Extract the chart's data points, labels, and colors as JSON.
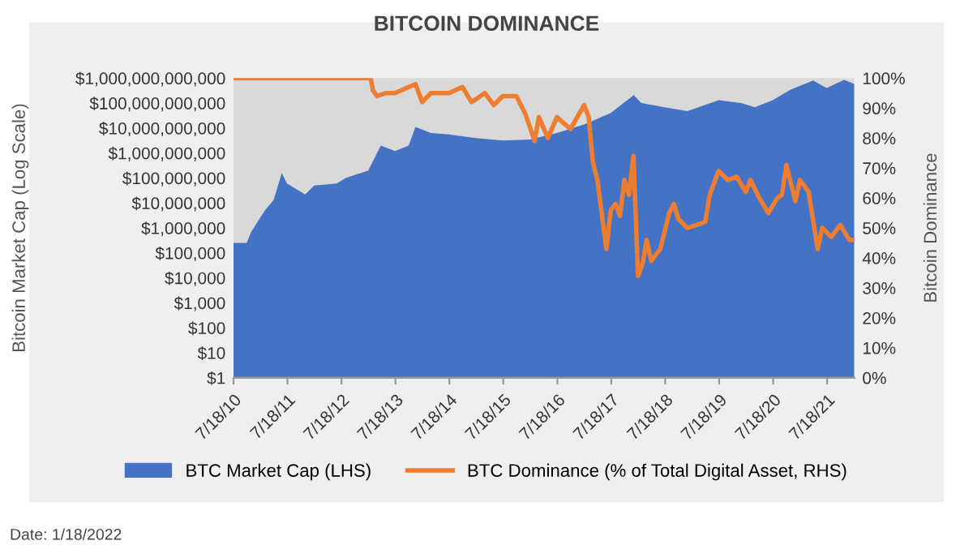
{
  "chart_data": {
    "type": "area",
    "title": "BITCOIN DOMINANCE",
    "ylabel": "Bitcoin Market Cap (Log Scale)",
    "y2label": "Bitcoin Dominance",
    "annotations": [
      "Date: 1/18/2022"
    ],
    "log": "y",
    "grid": false,
    "legend": "bottom",
    "xlim": [
      "2010-07-18",
      "2022-01-18"
    ],
    "xticks": [
      {
        "value": "2010-07-18",
        "label": "7/18/10"
      },
      {
        "value": "2011-07-18",
        "label": "7/18/11"
      },
      {
        "value": "2012-07-18",
        "label": "7/18/12"
      },
      {
        "value": "2013-07-18",
        "label": "7/18/13"
      },
      {
        "value": "2014-07-18",
        "label": "7/18/14"
      },
      {
        "value": "2015-07-18",
        "label": "7/18/15"
      },
      {
        "value": "2016-07-18",
        "label": "7/18/16"
      },
      {
        "value": "2017-07-18",
        "label": "7/18/17"
      },
      {
        "value": "2018-07-18",
        "label": "7/18/18"
      },
      {
        "value": "2019-07-18",
        "label": "7/18/19"
      },
      {
        "value": "2020-07-18",
        "label": "7/18/20"
      },
      {
        "value": "2021-07-18",
        "label": "7/18/21"
      }
    ],
    "ylim": [
      1,
      1000000000000
    ],
    "yticks": [
      {
        "value": 1,
        "label": "$1"
      },
      {
        "value": 10,
        "label": "$10"
      },
      {
        "value": 100,
        "label": "$100"
      },
      {
        "value": 1000,
        "label": "$1,000"
      },
      {
        "value": 10000,
        "label": "$10,000"
      },
      {
        "value": 100000,
        "label": "$100,000"
      },
      {
        "value": 1000000,
        "label": "$1,000,000"
      },
      {
        "value": 10000000,
        "label": "$10,000,000"
      },
      {
        "value": 100000000,
        "label": "$100,000,000"
      },
      {
        "value": 1000000000,
        "label": "$1,000,000,000"
      },
      {
        "value": 10000000000,
        "label": "$10,000,000,000"
      },
      {
        "value": 100000000000,
        "label": "$100,000,000,000"
      },
      {
        "value": 1000000000000,
        "label": "$1,000,000,000,000"
      }
    ],
    "y2lim": [
      0,
      100
    ],
    "y2ticks": [
      {
        "value": 0,
        "label": "0%"
      },
      {
        "value": 10,
        "label": "10%"
      },
      {
        "value": 20,
        "label": "20%"
      },
      {
        "value": 30,
        "label": "30%"
      },
      {
        "value": 40,
        "label": "40%"
      },
      {
        "value": 50,
        "label": "50%"
      },
      {
        "value": 60,
        "label": "60%"
      },
      {
        "value": 70,
        "label": "70%"
      },
      {
        "value": 80,
        "label": "80%"
      },
      {
        "value": 90,
        "label": "90%"
      },
      {
        "value": 100,
        "label": "100%"
      }
    ],
    "series": [
      {
        "name": "BTC Market Cap (LHS)",
        "color": "#4472c4",
        "x": [
          "2010-07-18",
          "2010-10-15",
          "2010-11-15",
          "2011-02-15",
          "2011-04-15",
          "2011-06-10",
          "2011-07-15",
          "2011-11-15",
          "2012-01-15",
          "2012-06-15",
          "2012-08-15",
          "2013-01-15",
          "2013-04-10",
          "2013-07-15",
          "2013-10-15",
          "2013-12-01",
          "2014-03-15",
          "2014-07-15",
          "2015-01-15",
          "2015-07-15",
          "2016-01-15",
          "2016-07-15",
          "2017-01-15",
          "2017-07-15",
          "2017-12-17",
          "2018-02-06",
          "2018-07-15",
          "2018-12-15",
          "2019-07-15",
          "2019-12-15",
          "2020-03-15",
          "2020-07-15",
          "2020-11-15",
          "2021-04-15",
          "2021-07-15",
          "2021-11-10",
          "2022-01-18"
        ],
        "values": [
          250000,
          250000,
          700000,
          5000000,
          13000000,
          160000000,
          60000000,
          22000000,
          50000000,
          60000000,
          100000000,
          200000000,
          2000000000,
          1200000000,
          2000000000,
          11000000000,
          6300000000,
          5600000000,
          4000000000,
          3200000000,
          3500000000,
          6300000000,
          14000000000,
          40000000000,
          210000000000,
          100000000000,
          68000000000,
          48000000000,
          130000000000,
          100000000000,
          68000000000,
          130000000000,
          350000000000,
          800000000000,
          400000000000,
          850000000000,
          580000000000
        ]
      },
      {
        "name": "BTC Dominance (% of Total Digital Asset, RHS)",
        "type": "line",
        "axis": "y2",
        "color": "#ed7d31",
        "x": [
          "2010-07-18",
          "2013-02-01",
          "2013-02-15",
          "2013-03-15",
          "2013-05-15",
          "2013-07-15",
          "2013-12-01",
          "2014-01-15",
          "2014-03-15",
          "2014-07-15",
          "2014-10-15",
          "2014-12-15",
          "2015-01-15",
          "2015-03-15",
          "2015-05-15",
          "2015-07-15",
          "2015-10-15",
          "2015-12-15",
          "2016-02-15",
          "2016-03-15",
          "2016-05-15",
          "2016-07-15",
          "2016-10-15",
          "2017-01-15",
          "2017-02-15",
          "2017-03-15",
          "2017-04-15",
          "2017-06-15",
          "2017-07-15",
          "2017-08-15",
          "2017-09-15",
          "2017-10-15",
          "2017-11-15",
          "2017-12-15",
          "2018-01-15",
          "2018-02-15",
          "2018-03-15",
          "2018-04-15",
          "2018-06-15",
          "2018-08-15",
          "2018-09-15",
          "2018-10-15",
          "2018-12-15",
          "2019-02-15",
          "2019-04-15",
          "2019-05-15",
          "2019-07-15",
          "2019-09-15",
          "2019-11-15",
          "2020-01-15",
          "2020-02-15",
          "2020-04-15",
          "2020-06-15",
          "2020-08-15",
          "2020-09-15",
          "2020-10-15",
          "2020-12-15",
          "2021-01-15",
          "2021-03-15",
          "2021-05-15",
          "2021-06-15",
          "2021-08-15",
          "2021-10-15",
          "2021-12-15",
          "2022-01-18"
        ],
        "values": [
          100,
          100,
          96,
          94,
          95,
          95,
          98,
          92,
          95,
          95,
          97,
          92,
          93,
          95,
          91,
          94,
          94,
          88,
          79,
          87,
          80,
          87,
          83,
          91,
          87,
          72,
          66,
          43,
          56,
          58,
          54,
          66,
          61,
          74,
          34,
          38,
          46,
          39,
          43,
          55,
          58,
          53,
          50,
          51,
          52,
          61,
          69,
          66,
          67,
          62,
          66,
          60,
          55,
          60,
          61,
          71,
          59,
          66,
          62,
          43,
          50,
          47,
          51,
          46,
          46
        ]
      }
    ]
  }
}
